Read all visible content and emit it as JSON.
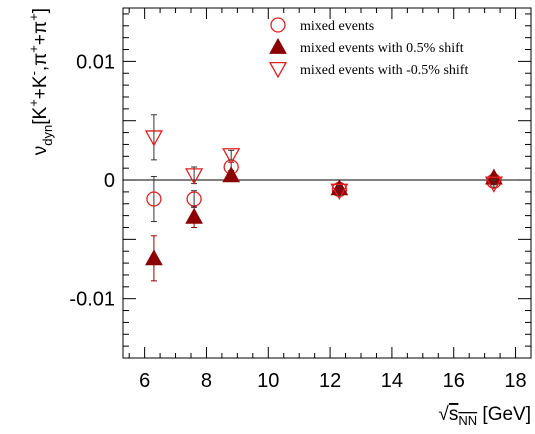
{
  "chart_data": {
    "type": "scatter",
    "title": "",
    "xlabel": {
      "sqrt": "√",
      "main": "s",
      "sub": "NN",
      "unit": " [GeV]"
    },
    "ylabel": {
      "nu": "ν",
      "sub": "dyn",
      "lb": "[",
      "K1": "K",
      "sup1": "+",
      "plus1": "+K",
      "sup2": "-",
      "comma": ",π",
      "sup3": "+",
      "plus2": "+π",
      "sup4": "+",
      "rb": "]"
    },
    "xlim": [
      5.3,
      18.5
    ],
    "ylim": [
      -0.015,
      0.0145
    ],
    "x_ticks": [
      6,
      8,
      10,
      12,
      14,
      16,
      18
    ],
    "x_tick_labels": [
      "6",
      "8",
      "10",
      "12",
      "14",
      "16",
      "18"
    ],
    "y_ticks": [
      0.01,
      0,
      -0.01
    ],
    "y_tick_labels": [
      "0.01",
      "0",
      "-0.01"
    ],
    "zero_line": true,
    "grid": false,
    "legend_position": "top-right",
    "colors": {
      "open_series": "#dd2222",
      "filled_series": "#8b0000",
      "axis": "#000000"
    },
    "series": [
      {
        "name": "mixed events",
        "marker": "open-circle",
        "x": [
          6.3,
          7.6,
          8.8,
          12.3,
          17.3
        ],
        "y": [
          -0.0016,
          -0.0016,
          0.0011,
          -0.0008,
          -0.0001
        ],
        "err": [
          0.0019,
          0.0007,
          0.0004,
          0.0004,
          0.0003
        ]
      },
      {
        "name": "mixed events with 0.5% shift",
        "marker": "filled-triangle-up",
        "x": [
          6.3,
          7.6,
          8.8,
          12.3,
          17.3
        ],
        "y": [
          -0.0066,
          -0.0031,
          0.0004,
          -0.0007,
          0.0002
        ],
        "err": [
          0.0019,
          0.0009,
          0.0004,
          0.0004,
          0.0003
        ]
      },
      {
        "name": "mixed events with -0.5% shift",
        "marker": "open-triangle-down",
        "x": [
          6.3,
          7.6,
          8.8,
          12.3,
          17.3
        ],
        "y": [
          0.0036,
          0.0004,
          0.0021,
          -0.0009,
          -0.0003
        ],
        "err": [
          0.0019,
          0.0007,
          0.0004,
          0.0004,
          0.0003
        ]
      }
    ]
  }
}
